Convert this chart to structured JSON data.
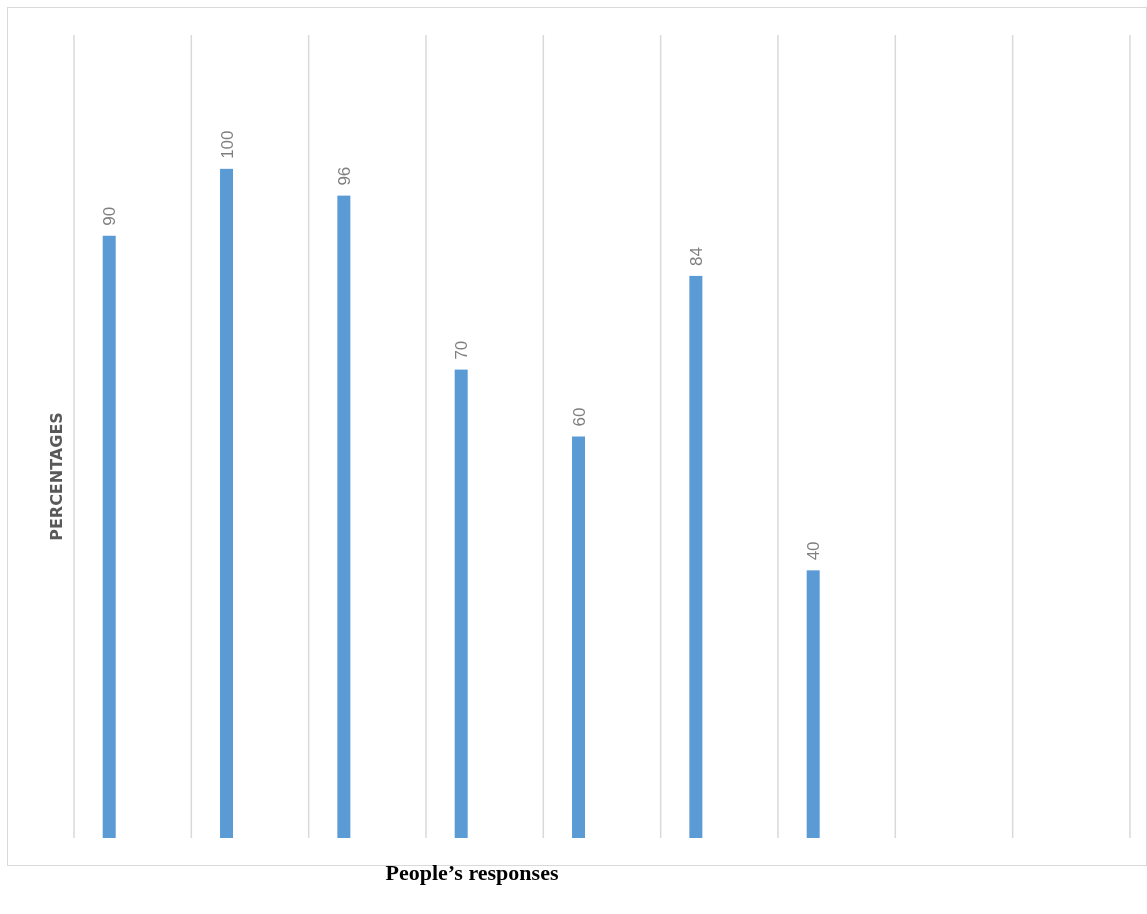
{
  "chart_data": {
    "type": "bar",
    "xlabel": "People’s responses",
    "ylabel": "PERCENTAGES",
    "categories": [
      null,
      null,
      null,
      null,
      null,
      null,
      null
    ],
    "values": [
      90,
      100,
      96,
      70,
      60,
      84,
      40
    ],
    "color": "#5b9bd5",
    "ylim": [
      0,
      120
    ],
    "data_labels": true,
    "grid": "x"
  }
}
